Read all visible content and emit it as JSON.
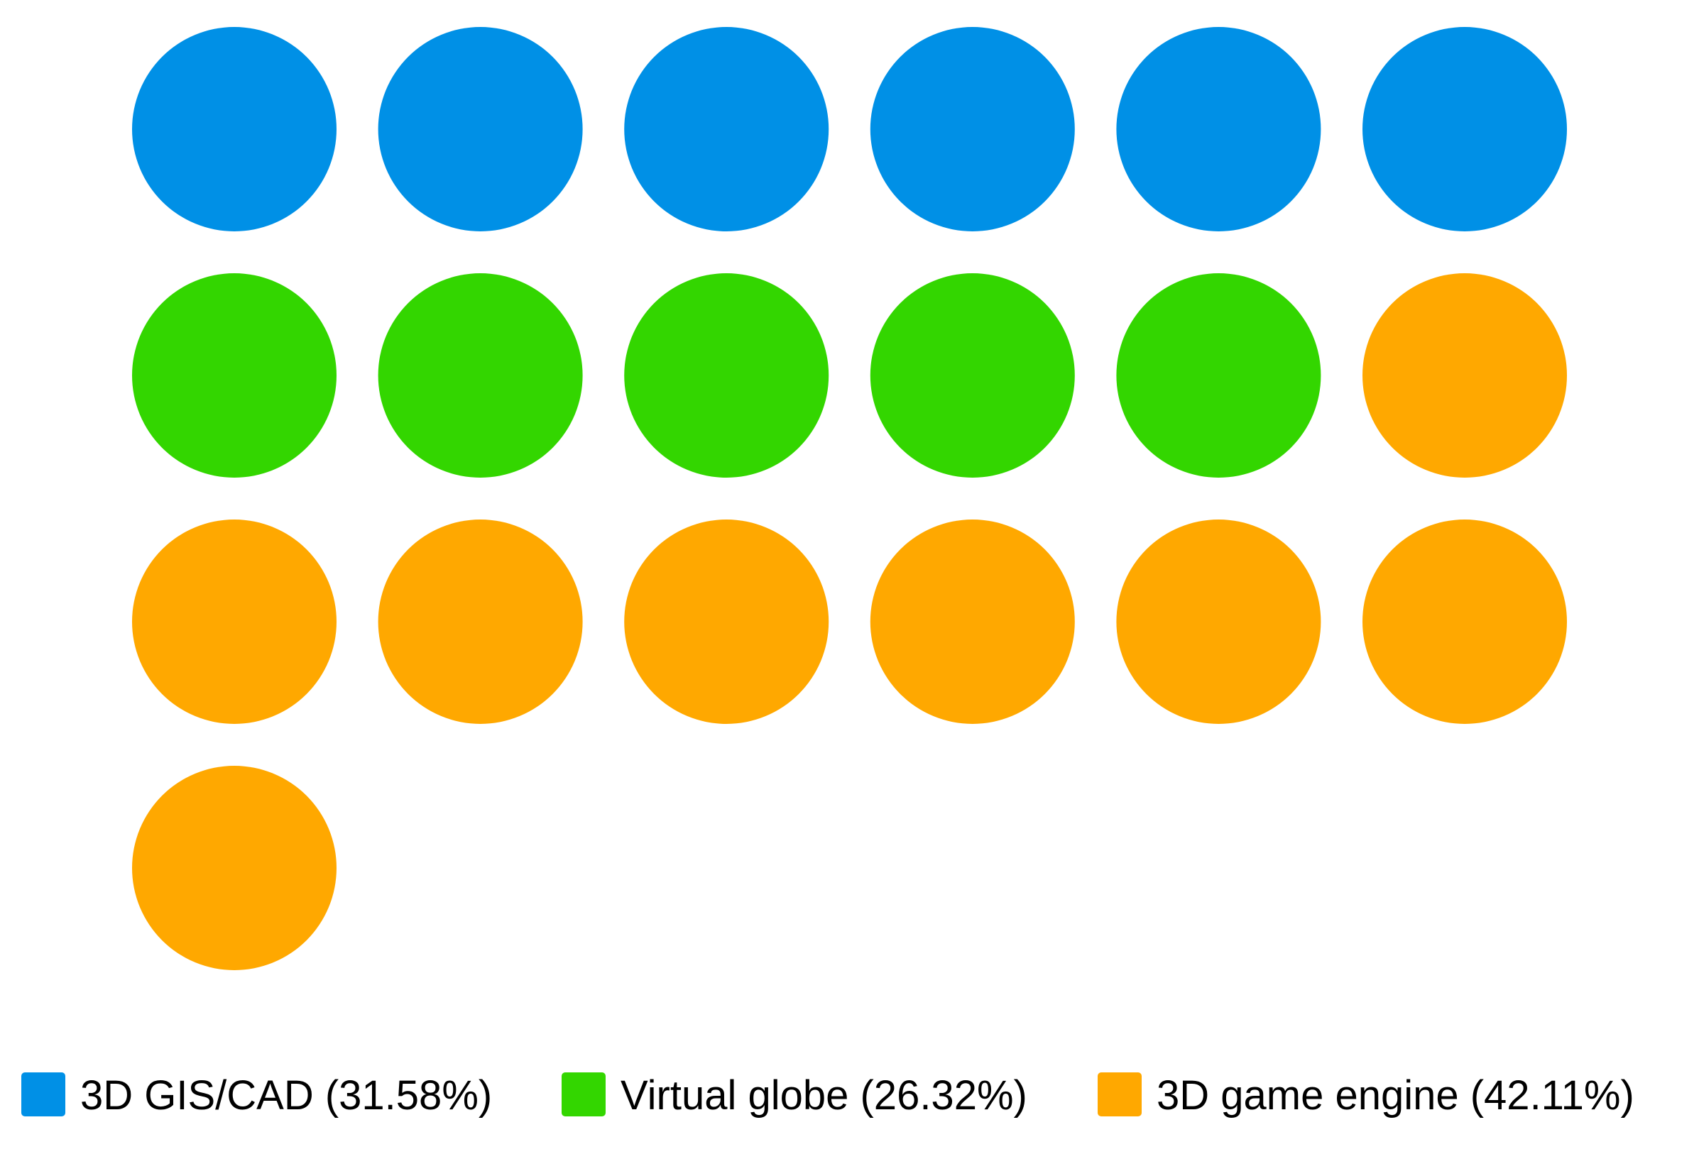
{
  "chart_data": {
    "type": "waffle",
    "title": "",
    "categories": [
      "3D GIS/CAD",
      "Virtual globe",
      "3D game engine"
    ],
    "values": [
      6,
      5,
      8
    ],
    "percentages": [
      31.58,
      26.32,
      42.11
    ],
    "total": 19,
    "columns": 6,
    "colors": [
      "#0090e6",
      "#33d600",
      "#ffa800"
    ],
    "legend": {
      "position": "bottom",
      "entries": [
        {
          "label": "3D GIS/CAD (31.58%)",
          "color": "#0090e6"
        },
        {
          "label": "Virtual globe (26.32%)",
          "color": "#33d600"
        },
        {
          "label": "3D game engine (42.11%)",
          "color": "#ffa800"
        }
      ]
    }
  }
}
